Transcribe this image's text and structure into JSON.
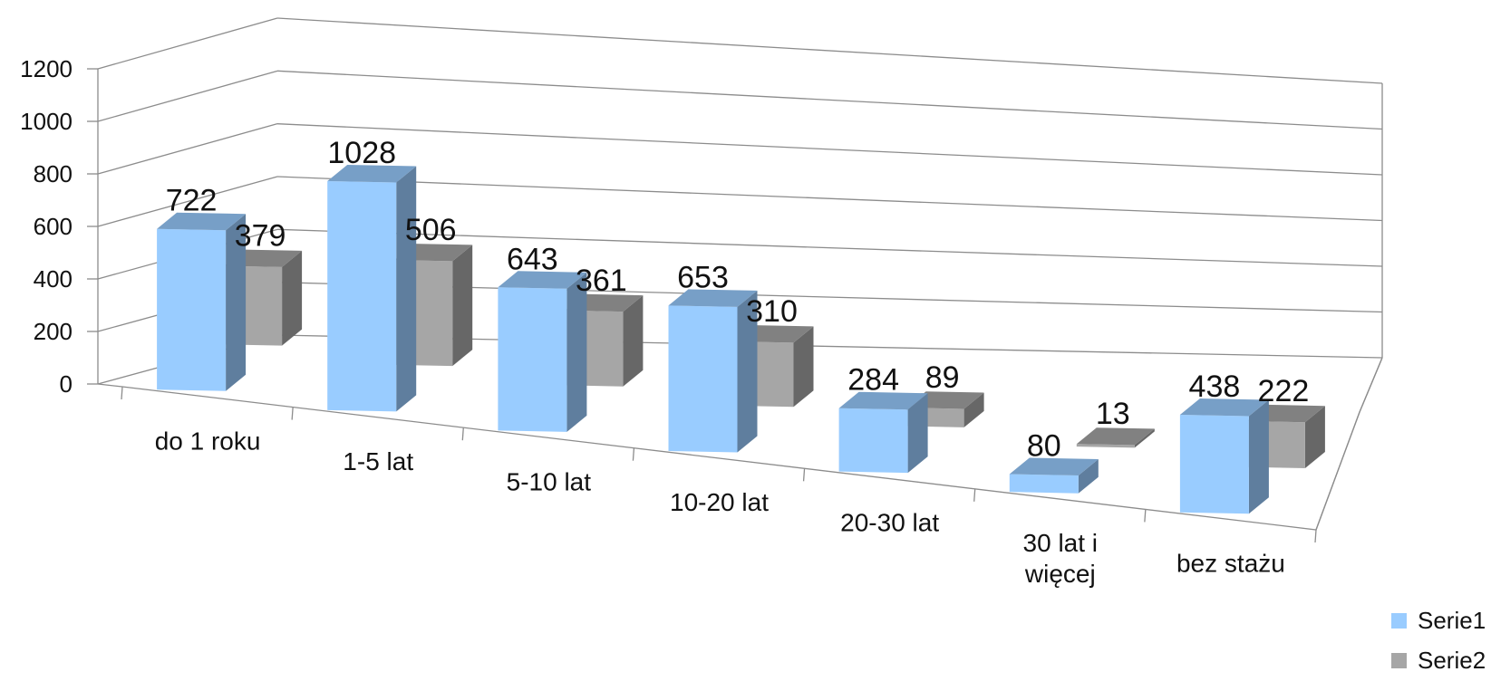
{
  "chart_data": {
    "type": "bar",
    "style": "3d-clustered-column",
    "categories": [
      [
        "do 1 roku"
      ],
      [
        "1-5 lat"
      ],
      [
        "5-10 lat"
      ],
      [
        "10-20 lat"
      ],
      [
        "20-30 lat"
      ],
      [
        "30 lat i",
        "więcej"
      ],
      [
        "bez stażu"
      ]
    ],
    "series": [
      {
        "name": "Serie1",
        "color": "#99CCFF",
        "values": [
          722,
          1028,
          643,
          653,
          284,
          80,
          438
        ]
      },
      {
        "name": "Serie2",
        "color": "#A6A6A6",
        "values": [
          379,
          506,
          361,
          310,
          89,
          13,
          222
        ]
      }
    ],
    "y_ticks": [
      "0",
      "200",
      "400",
      "600",
      "800",
      "1000",
      "1200"
    ],
    "ylim": [
      0,
      1200
    ],
    "grid": true,
    "legend": "bottom-right",
    "data_labels": true
  }
}
